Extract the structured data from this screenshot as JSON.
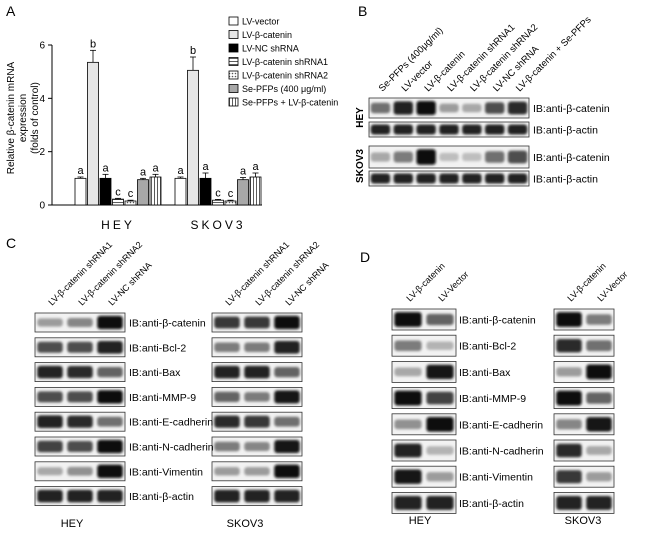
{
  "panelA": {
    "letter": "A",
    "ylabel_lines": [
      "Relative β-catenin mRNA",
      "expression",
      "(folds of control)"
    ],
    "legend": [
      {
        "label": "LV-vector",
        "color": "#ffffff",
        "pattern": "none"
      },
      {
        "label": "LV-β-catenin",
        "color": "#e6e6e6",
        "pattern": "none"
      },
      {
        "label": "LV-NC shRNA",
        "color": "#000000",
        "pattern": "none"
      },
      {
        "label": "LV-β-catenin shRNA1",
        "color": "#ffffff",
        "pattern": "hlines"
      },
      {
        "label": "LV-β-catenin shRNA2",
        "color": "#ffffff",
        "pattern": "dots"
      },
      {
        "label": "Se-PFPs (400 μg/ml)",
        "color": "#a8a8a8",
        "pattern": "none"
      },
      {
        "label": "Se-PFPs + LV-β-catenin",
        "color": "#ffffff",
        "pattern": "vlines"
      }
    ],
    "chart_data": {
      "type": "bar",
      "categories": [
        "HEY",
        "SKOV3"
      ],
      "ylim": [
        0,
        6
      ],
      "yticks": [
        "0",
        "2",
        "4",
        "6"
      ],
      "series": [
        {
          "name": "LV-vector",
          "values": [
            1.0,
            1.0
          ],
          "errors": [
            0.05,
            0.05
          ],
          "letters": [
            "a",
            "a"
          ]
        },
        {
          "name": "LV-β-catenin",
          "values": [
            5.35,
            5.05
          ],
          "errors": [
            0.45,
            0.5
          ],
          "letters": [
            "b",
            "b"
          ]
        },
        {
          "name": "LV-NC shRNA",
          "values": [
            1.0,
            1.0
          ],
          "errors": [
            0.15,
            0.2
          ],
          "letters": [
            "a",
            "a"
          ]
        },
        {
          "name": "LV-β-catenin shRNA1",
          "values": [
            0.22,
            0.18
          ],
          "errors": [
            0.03,
            0.03
          ],
          "letters": [
            "c",
            "c"
          ]
        },
        {
          "name": "LV-β-catenin shRNA2",
          "values": [
            0.15,
            0.15
          ],
          "errors": [
            0.03,
            0.03
          ],
          "letters": [
            "c",
            "c"
          ]
        },
        {
          "name": "Se-PFPs (400 μg/ml)",
          "values": [
            0.95,
            0.95
          ],
          "errors": [
            0.05,
            0.08
          ],
          "letters": [
            "a",
            "a"
          ]
        },
        {
          "name": "Se-PFPs + LV-β-catenin",
          "values": [
            1.05,
            1.05
          ],
          "errors": [
            0.1,
            0.15
          ],
          "letters": [
            "a",
            "a"
          ]
        }
      ]
    }
  },
  "panelB": {
    "letter": "B",
    "lanes": [
      "Se-PFPs (400μg/ml)",
      "LV-vector",
      "LV-β-catenin",
      "LV-β-catenin shRNA1",
      "LV-β-catenin shRNA2",
      "LV-NC shRNA",
      "LV-β-catenin + Se-PFPs"
    ],
    "groups": [
      {
        "cell": "HEY",
        "blots": [
          {
            "label": "IB:anti-β-catenin",
            "intensities": [
              0.55,
              0.9,
              1.0,
              0.35,
              0.3,
              0.7,
              0.85
            ]
          },
          {
            "label": "IB:anti-β-actin",
            "intensities": [
              0.9,
              0.9,
              0.9,
              0.9,
              0.9,
              0.9,
              0.9
            ]
          }
        ]
      },
      {
        "cell": "SKOV3",
        "blots": [
          {
            "label": "IB:anti-β-catenin",
            "intensities": [
              0.3,
              0.5,
              1.0,
              0.2,
              0.2,
              0.55,
              0.7
            ]
          },
          {
            "label": "IB:anti-β-actin",
            "intensities": [
              0.9,
              0.9,
              0.9,
              0.9,
              0.9,
              0.9,
              0.9
            ]
          }
        ]
      }
    ]
  },
  "panelC": {
    "letter": "C",
    "lanes": [
      "LV-β-catenin shRNA1",
      "LV-β-catenin shRNA2",
      "LV-NC shRNA"
    ],
    "cells": [
      "HEY",
      "SKOV3"
    ],
    "blots": [
      {
        "label": "IB:anti-β-catenin",
        "hey": [
          0.35,
          0.45,
          1.0
        ],
        "skov": [
          0.8,
          0.8,
          1.0
        ]
      },
      {
        "label": "IB:anti-Bcl-2",
        "hey": [
          0.7,
          0.7,
          0.9
        ],
        "skov": [
          0.5,
          0.5,
          0.9
        ]
      },
      {
        "label": "IB:anti-Bax",
        "hey": [
          0.9,
          0.85,
          0.6
        ],
        "skov": [
          0.9,
          0.9,
          0.6
        ]
      },
      {
        "label": "IB:anti-MMP-9",
        "hey": [
          0.7,
          0.7,
          1.0
        ],
        "skov": [
          0.6,
          0.5,
          0.95
        ]
      },
      {
        "label": "IB:anti-E-cadherin",
        "hey": [
          0.9,
          0.85,
          0.55
        ],
        "skov": [
          0.85,
          0.8,
          0.55
        ]
      },
      {
        "label": "IB:anti-N-cadherin",
        "hey": [
          0.75,
          0.7,
          1.0
        ],
        "skov": [
          0.5,
          0.45,
          0.95
        ]
      },
      {
        "label": "IB:anti-Vimentin",
        "hey": [
          0.3,
          0.4,
          1.0
        ],
        "skov": [
          0.35,
          0.35,
          1.0
        ]
      },
      {
        "label": "IB:anti-β-actin",
        "hey": [
          0.9,
          0.9,
          0.9
        ],
        "skov": [
          0.9,
          0.9,
          0.9
        ]
      }
    ]
  },
  "panelD": {
    "letter": "D",
    "lanes": [
      "LV-β-catenin",
      "LV-Vector"
    ],
    "cells": [
      "HEY",
      "SKOV3"
    ],
    "blots": [
      {
        "label": "IB:anti-β-catenin",
        "hey": [
          1.0,
          0.6
        ],
        "skov": [
          1.0,
          0.5
        ]
      },
      {
        "label": "IB:anti-Bcl-2",
        "hey": [
          0.5,
          0.25
        ],
        "skov": [
          0.85,
          0.55
        ]
      },
      {
        "label": "IB:anti-Bax",
        "hey": [
          0.3,
          0.95
        ],
        "skov": [
          0.35,
          1.0
        ]
      },
      {
        "label": "IB:anti-MMP-9",
        "hey": [
          1.0,
          0.75
        ],
        "skov": [
          1.0,
          0.6
        ]
      },
      {
        "label": "IB:anti-E-cadherin",
        "hey": [
          0.4,
          1.0
        ],
        "skov": [
          0.45,
          0.95
        ]
      },
      {
        "label": "IB:anti-N-cadherin",
        "hey": [
          0.9,
          0.25
        ],
        "skov": [
          0.85,
          0.3
        ]
      },
      {
        "label": "IB:anti-Vimentin",
        "hey": [
          0.95,
          0.35
        ],
        "skov": [
          0.8,
          0.35
        ]
      },
      {
        "label": "IB:anti-β-actin",
        "hey": [
          0.9,
          0.9
        ],
        "skov": [
          0.9,
          0.9
        ]
      }
    ]
  }
}
